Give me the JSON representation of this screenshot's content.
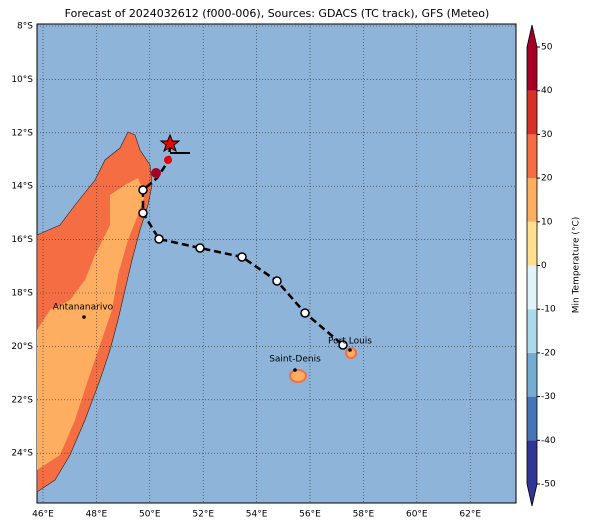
{
  "title": "Forecast of 2024032612 (f000-006), Sources: GDACS (TC track), GFS (Meteo)",
  "map": {
    "lon_labels": [
      "46°E",
      "48°E",
      "50°E",
      "52°E",
      "54°E",
      "56°E",
      "58°E",
      "60°E",
      "62°E"
    ],
    "lat_labels": [
      "8°S",
      "10°S",
      "12°S",
      "14°S",
      "16°S",
      "18°S",
      "20°S",
      "22°S",
      "24°S"
    ],
    "places": [
      {
        "label": "Antananarivo"
      },
      {
        "label": "Saint-Denis"
      },
      {
        "label": "Port Louis"
      }
    ]
  },
  "colorbar": {
    "label": "Min Temperature (°C)",
    "ticks": [
      -50,
      -40,
      -30,
      -20,
      -10,
      0,
      10,
      20,
      30,
      40,
      50
    ],
    "colors": [
      "#313695",
      "#4575b4",
      "#74add1",
      "#abd9e9",
      "#e0f3f8",
      "#fee090",
      "#fdae61",
      "#f46d43",
      "#d73027",
      "#a50026"
    ]
  }
}
